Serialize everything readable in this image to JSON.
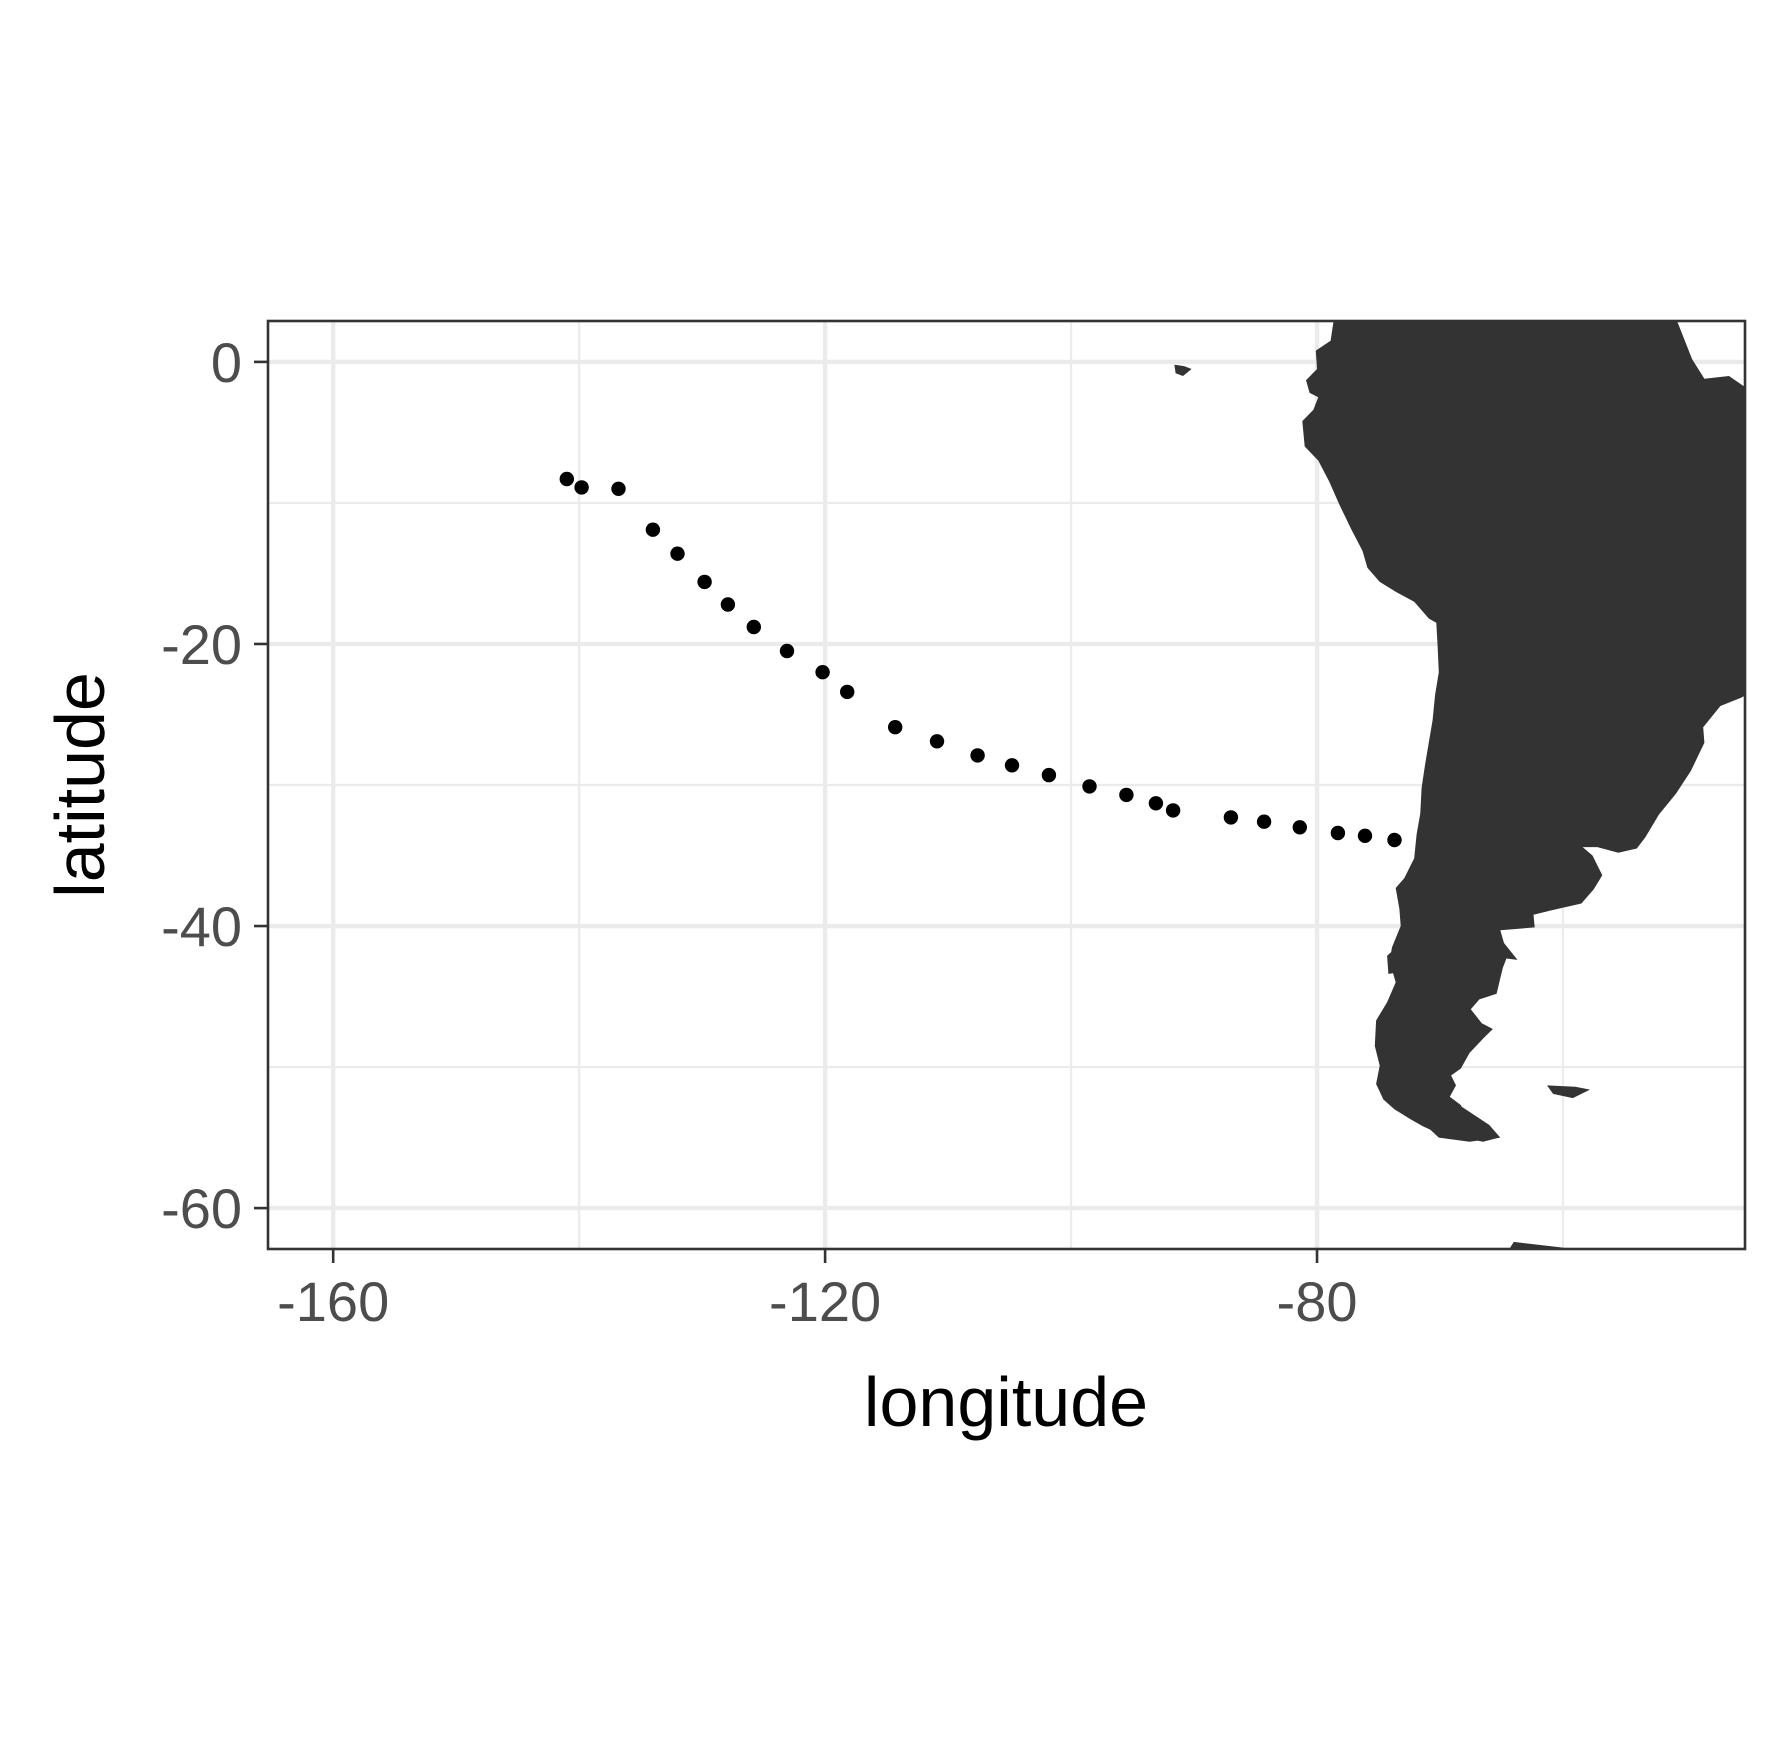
{
  "chart_data": {
    "type": "scatter",
    "title": "",
    "xlabel": "longitude",
    "ylabel": "latitude",
    "xlim": [
      -165.3,
      -45.2
    ],
    "ylim": [
      -62.9,
      2.9
    ],
    "x_ticks": [
      -160,
      -120,
      -80
    ],
    "y_ticks": [
      0,
      -20,
      -40,
      -60
    ],
    "x_minor_grid": [
      -140,
      -100,
      -60
    ],
    "y_minor_grid": [
      -10,
      -30,
      -50
    ],
    "grid": true,
    "theme": "bw",
    "colors": {
      "points": "#000000",
      "land": "#333333",
      "grid": "#ebebeb",
      "border": "#333333",
      "tick_text": "#4d4d4d",
      "axis_title": "#000000"
    },
    "series": [
      {
        "x": [
          -141.0,
          -139.8,
          -136.8,
          -134.0,
          -132.0,
          -129.8,
          -127.9,
          -125.8,
          -123.1,
          -120.2,
          -118.2,
          -114.3,
          -110.9,
          -107.6,
          -104.8,
          -101.8,
          -98.5,
          -95.5,
          -93.1,
          -91.7,
          -87.0,
          -84.3,
          -81.4,
          -78.3,
          -76.1,
          -73.7
        ],
        "y": [
          -8.3,
          -8.9,
          -9.0,
          -11.9,
          -13.6,
          -15.6,
          -17.2,
          -18.8,
          -20.5,
          -22.0,
          -23.4,
          -25.9,
          -26.9,
          -27.9,
          -28.6,
          -29.3,
          -30.1,
          -30.7,
          -31.3,
          -31.8,
          -32.3,
          -32.6,
          -33.0,
          -33.4,
          -33.6,
          -33.9
        ]
      }
    ],
    "land": "South America"
  }
}
